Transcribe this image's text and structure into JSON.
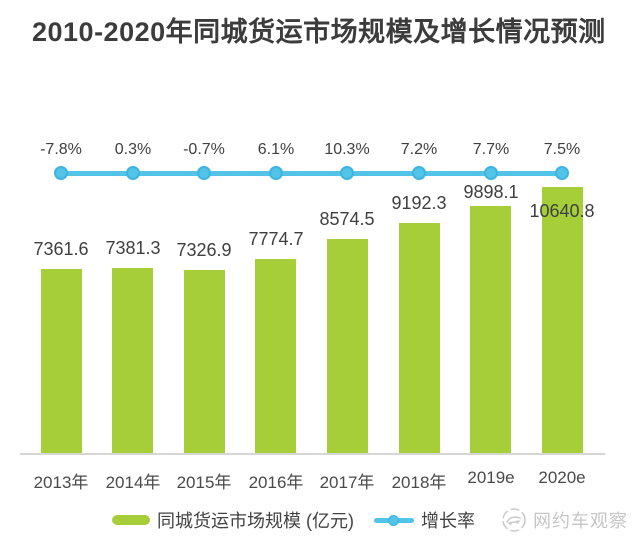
{
  "header": {
    "title": "2010-2020年同城货运市场规模及增长情况预测"
  },
  "chart_data": {
    "type": "bar",
    "title": "2010-2020年同城货运市场规模及增长情况预测",
    "categories": [
      "2013年",
      "2014年",
      "2015年",
      "2016年",
      "2017年",
      "2018年",
      "2019e",
      "2020e"
    ],
    "series": [
      {
        "name": "同城货运市场规模 (亿元)",
        "type": "bar",
        "unit": "亿元",
        "values": [
          7361.6,
          7381.3,
          7326.9,
          7774.7,
          8574.5,
          9192.3,
          9898.1,
          10640.8
        ],
        "value_labels": [
          "7361.6",
          "7381.3",
          "7326.9",
          "7774.7",
          "8574.5",
          "9192.3",
          "9898.1",
          "10640.8"
        ],
        "color": "#a5ce39"
      },
      {
        "name": "增长率",
        "type": "line",
        "values_pct": [
          -7.8,
          0.3,
          -0.7,
          6.1,
          10.3,
          7.2,
          7.7,
          7.5
        ],
        "value_labels": [
          "-7.8%",
          "0.3%",
          "-0.7%",
          "6.1%",
          "10.3%",
          "7.2%",
          "7.7%",
          "7.5%"
        ],
        "color": "#53c3e8"
      }
    ],
    "ylim": [
      0,
      11000
    ],
    "grid": false,
    "legend_position": "bottom"
  },
  "legend": {
    "bar_label": "同城货运市场规模 (亿元)",
    "line_label": "增长率"
  },
  "watermark": {
    "text": "网约车观察"
  },
  "colors": {
    "bar": "#a5ce39",
    "line": "#53c3e8",
    "line_marker_border": "#3db5de",
    "text_dark": "#3c3c3c",
    "axis": "#d6d6d6",
    "watermark": "#c6c6c6",
    "background": "#ffffff"
  }
}
